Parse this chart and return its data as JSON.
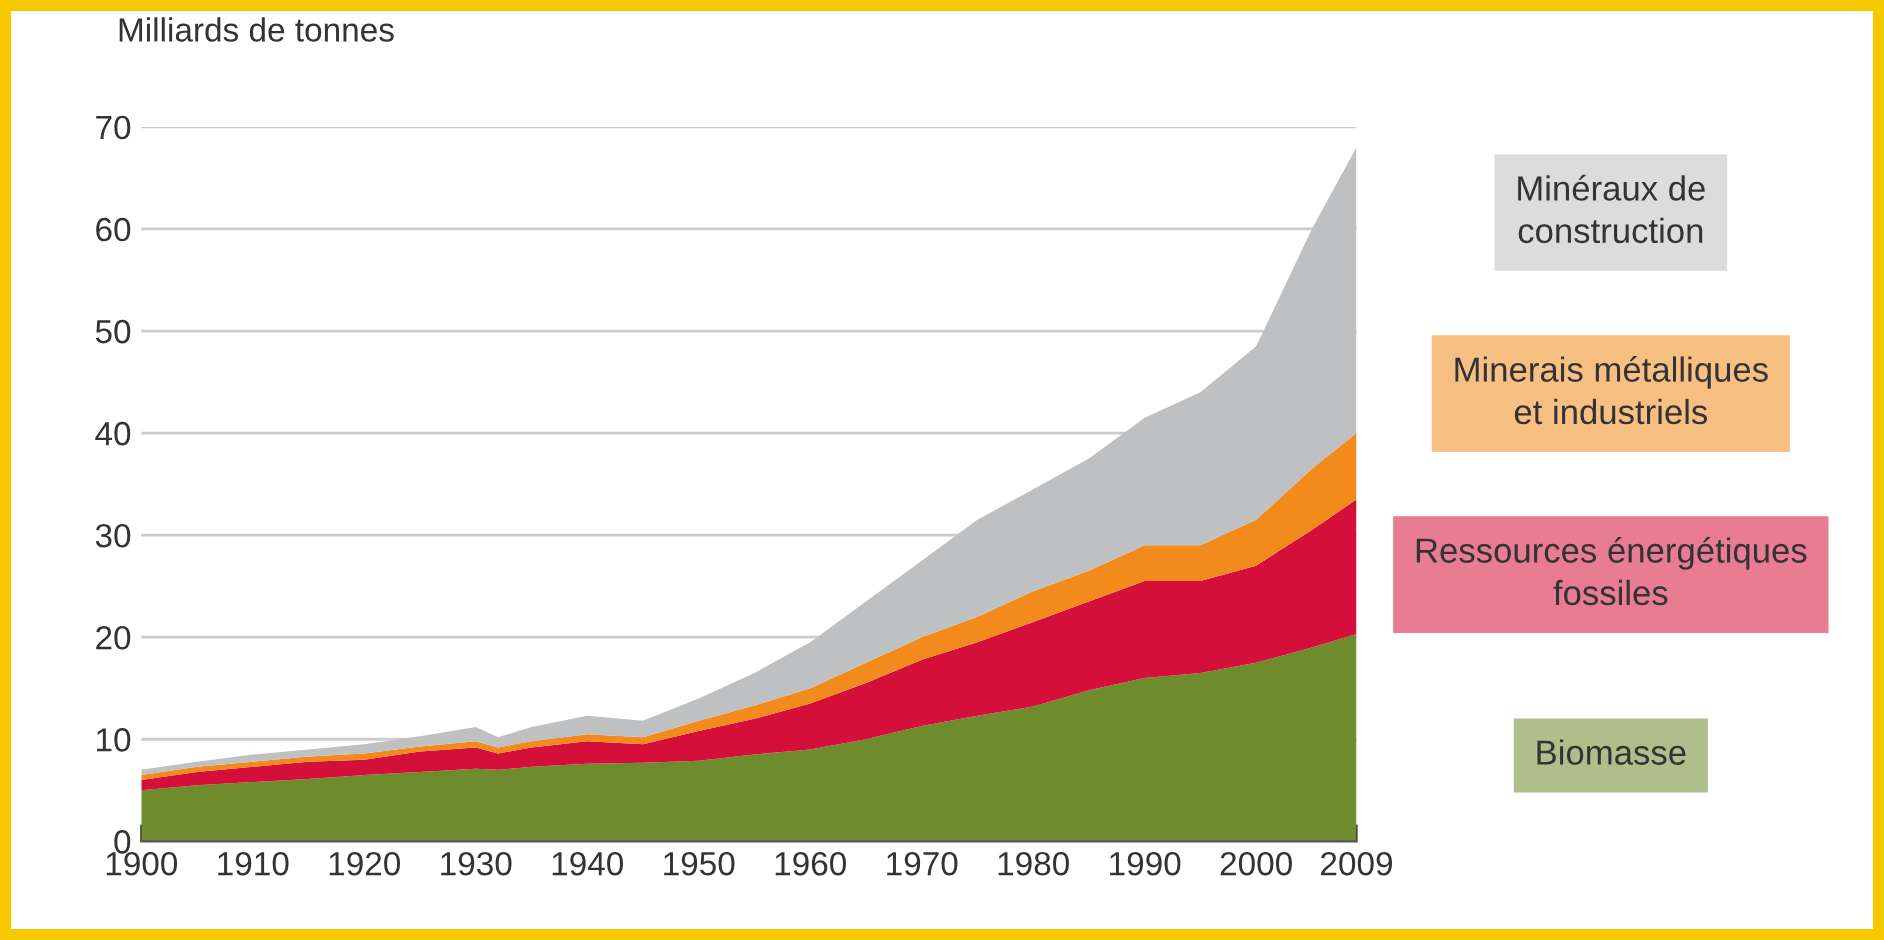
{
  "chart_data": {
    "type": "area",
    "stacked": true,
    "ylabel": "Milliards de tonnes",
    "x": [
      1900,
      1905,
      1910,
      1915,
      1920,
      1925,
      1930,
      1932,
      1935,
      1940,
      1945,
      1950,
      1955,
      1960,
      1965,
      1970,
      1975,
      1980,
      1985,
      1990,
      1995,
      2000,
      2005,
      2009
    ],
    "series": [
      {
        "name": "Biomasse",
        "color": "#6e8b2e",
        "values": [
          5.0,
          5.5,
          5.8,
          6.1,
          6.5,
          6.8,
          7.1,
          7.0,
          7.3,
          7.6,
          7.7,
          7.9,
          8.5,
          9.0,
          10.0,
          11.3,
          12.3,
          13.2,
          14.8,
          16.0,
          16.5,
          17.5,
          19.0,
          20.3
        ]
      },
      {
        "name": "Ressources énergétiques fossiles",
        "color": "#d4103a",
        "values": [
          1.0,
          1.3,
          1.5,
          1.7,
          1.5,
          2.0,
          2.1,
          1.6,
          1.9,
          2.2,
          1.8,
          2.9,
          3.5,
          4.5,
          5.5,
          6.5,
          7.2,
          8.3,
          8.7,
          9.5,
          9.0,
          9.5,
          11.5,
          13.2
        ]
      },
      {
        "name": "Minerais métalliques et industriels",
        "color": "#f28a1c",
        "values": [
          0.5,
          0.5,
          0.5,
          0.5,
          0.6,
          0.5,
          0.6,
          0.6,
          0.6,
          0.7,
          0.7,
          1.0,
          1.3,
          1.5,
          2.0,
          2.2,
          2.5,
          3.0,
          3.0,
          3.5,
          3.5,
          4.5,
          6.0,
          6.5
        ]
      },
      {
        "name": "Minéraux de construction",
        "color": "#bfc0c2",
        "values": [
          0.5,
          0.5,
          0.7,
          0.7,
          0.9,
          1.0,
          1.4,
          1.0,
          1.4,
          1.8,
          1.6,
          2.2,
          3.2,
          4.5,
          6.0,
          7.5,
          9.5,
          10.0,
          11.0,
          12.5,
          15.0,
          17.0,
          23.5,
          28.0
        ]
      }
    ],
    "xlim": [
      1900,
      2009
    ],
    "xticks": [
      1900,
      1910,
      1920,
      1930,
      1940,
      1950,
      1960,
      1970,
      1980,
      1990,
      2000,
      2009
    ],
    "ylim": [
      0,
      70
    ],
    "yticks": [
      0,
      10,
      20,
      30,
      40,
      50,
      60,
      70
    ],
    "grid": "y",
    "legend": "right"
  }
}
